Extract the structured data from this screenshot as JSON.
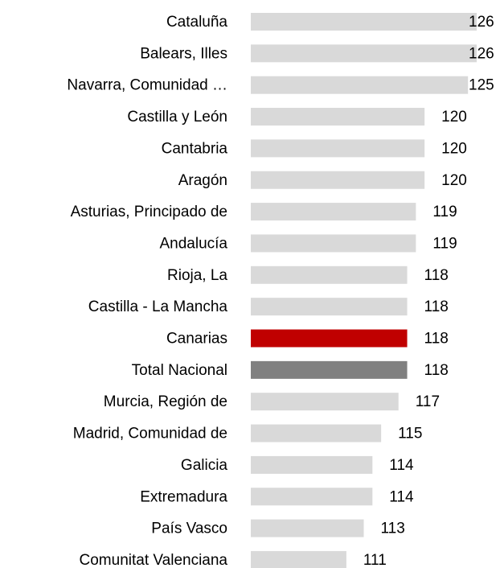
{
  "chart_data": {
    "type": "barh",
    "categories": [
      "Cataluña",
      "Balears, Illes",
      "Navarra, Comunidad …",
      "Castilla y León",
      "Cantabria",
      "Aragón",
      "Asturias, Principado de",
      "Andalucía",
      "Rioja, La",
      "Castilla - La Mancha",
      "Canarias",
      "Total Nacional",
      "Murcia, Región de",
      "Madrid, Comunidad de",
      "Galicia",
      "Extremadura",
      "País Vasco",
      "Comunitat Valenciana"
    ],
    "values": [
      126,
      126,
      125,
      120,
      120,
      120,
      119,
      119,
      118,
      118,
      118,
      118,
      117,
      115,
      114,
      114,
      113,
      111
    ],
    "colors": [
      "#d9d9d9",
      "#d9d9d9",
      "#d9d9d9",
      "#d9d9d9",
      "#d9d9d9",
      "#d9d9d9",
      "#d9d9d9",
      "#d9d9d9",
      "#d9d9d9",
      "#d9d9d9",
      "#c00000",
      "#808080",
      "#d9d9d9",
      "#d9d9d9",
      "#d9d9d9",
      "#d9d9d9",
      "#d9d9d9",
      "#d9d9d9"
    ],
    "xlim": [
      100,
      126
    ]
  }
}
